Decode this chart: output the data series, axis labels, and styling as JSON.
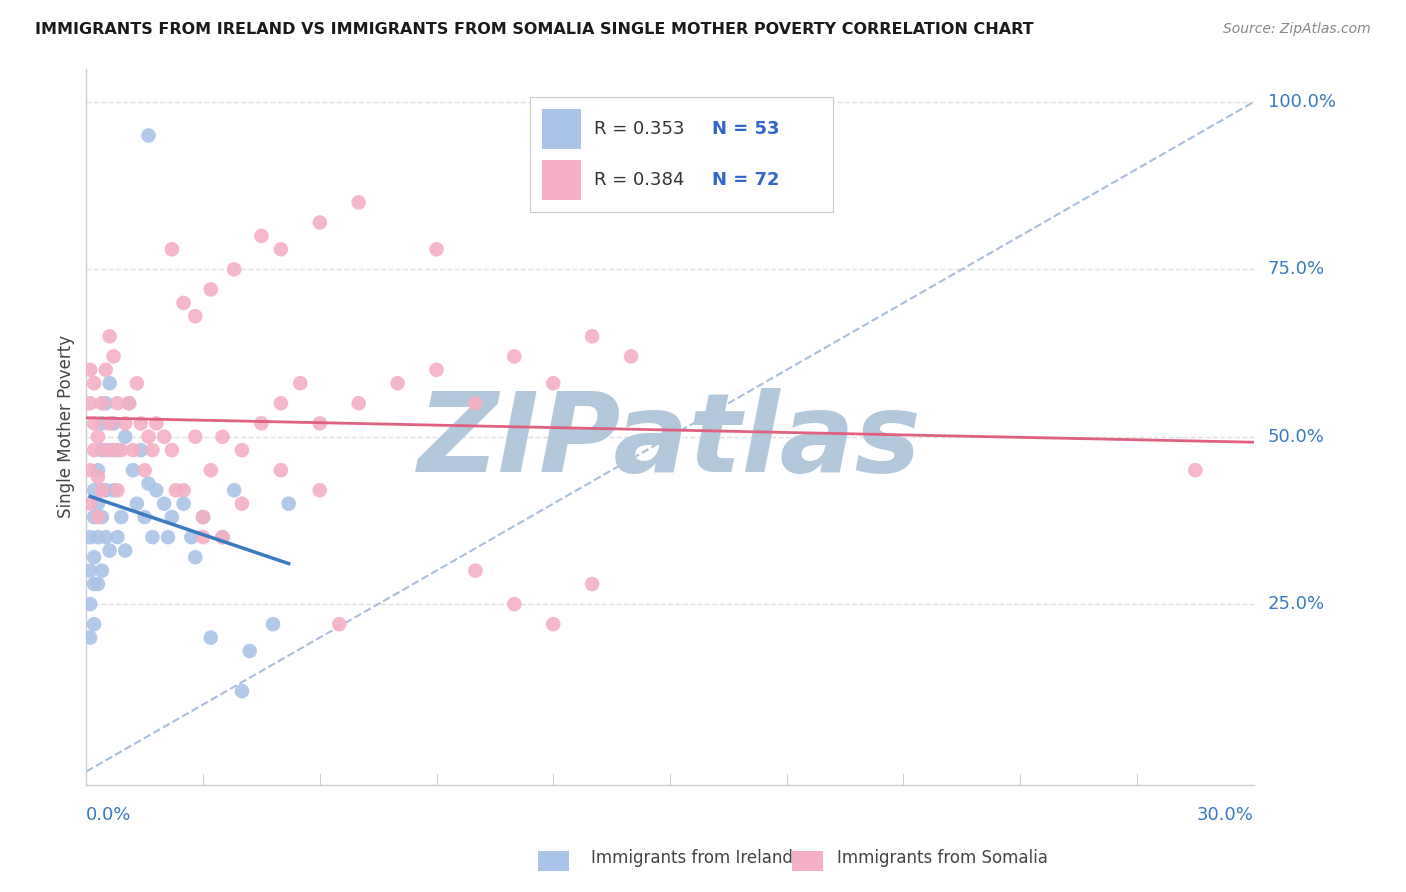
{
  "title": "IMMIGRANTS FROM IRELAND VS IMMIGRANTS FROM SOMALIA SINGLE MOTHER POVERTY CORRELATION CHART",
  "source": "Source: ZipAtlas.com",
  "ylabel": "Single Mother Poverty",
  "xlim": [
    0.0,
    0.3
  ],
  "ylim": [
    -0.02,
    1.05
  ],
  "ireland_color": "#aac4e8",
  "somalia_color": "#f5b0c5",
  "ireland_line_color": "#3a7abf",
  "somalia_line_color": "#e06080",
  "diag_line_color": "#a0b8d8",
  "ireland_R": 0.353,
  "ireland_N": 53,
  "somalia_R": 0.384,
  "somalia_N": 72,
  "legend_R_color": "#3366cc",
  "legend_N_color": "#3366cc",
  "watermark": "ZIPatlas",
  "watermark_color_r": 180,
  "watermark_color_g": 200,
  "watermark_color_b": 220,
  "background_color": "#ffffff",
  "grid_color": "#e0e0e0",
  "axis_label_color": "#3a7abf",
  "title_color": "#1a1a1a",
  "ylabel_color": "#444444",
  "ireland_x": [
    0.001,
    0.001,
    0.001,
    0.001,
    0.002,
    0.002,
    0.002,
    0.002,
    0.002,
    0.003,
    0.003,
    0.003,
    0.003,
    0.004,
    0.004,
    0.004,
    0.004,
    0.005,
    0.005,
    0.005,
    0.006,
    0.006,
    0.006,
    0.007,
    0.007,
    0.008,
    0.008,
    0.009,
    0.01,
    0.01,
    0.011,
    0.012,
    0.013,
    0.014,
    0.015,
    0.016,
    0.017,
    0.018,
    0.02,
    0.021,
    0.022,
    0.025,
    0.027,
    0.028,
    0.03,
    0.032,
    0.035,
    0.038,
    0.04,
    0.042,
    0.048,
    0.052,
    0.016
  ],
  "ireland_y": [
    0.3,
    0.25,
    0.2,
    0.35,
    0.28,
    0.32,
    0.38,
    0.42,
    0.22,
    0.35,
    0.4,
    0.45,
    0.28,
    0.48,
    0.52,
    0.38,
    0.3,
    0.55,
    0.42,
    0.35,
    0.58,
    0.48,
    0.33,
    0.52,
    0.42,
    0.48,
    0.35,
    0.38,
    0.5,
    0.33,
    0.55,
    0.45,
    0.4,
    0.48,
    0.38,
    0.43,
    0.35,
    0.42,
    0.4,
    0.35,
    0.38,
    0.4,
    0.35,
    0.32,
    0.38,
    0.2,
    0.35,
    0.42,
    0.12,
    0.18,
    0.22,
    0.4,
    0.95
  ],
  "somalia_x": [
    0.001,
    0.001,
    0.001,
    0.001,
    0.002,
    0.002,
    0.002,
    0.003,
    0.003,
    0.003,
    0.004,
    0.004,
    0.005,
    0.005,
    0.006,
    0.006,
    0.007,
    0.007,
    0.008,
    0.008,
    0.009,
    0.01,
    0.011,
    0.012,
    0.013,
    0.014,
    0.015,
    0.016,
    0.017,
    0.018,
    0.02,
    0.022,
    0.025,
    0.028,
    0.03,
    0.032,
    0.035,
    0.04,
    0.045,
    0.05,
    0.055,
    0.06,
    0.07,
    0.08,
    0.09,
    0.1,
    0.11,
    0.12,
    0.13,
    0.14,
    0.022,
    0.025,
    0.028,
    0.032,
    0.038,
    0.045,
    0.05,
    0.06,
    0.07,
    0.09,
    0.1,
    0.11,
    0.12,
    0.13,
    0.023,
    0.03,
    0.035,
    0.04,
    0.05,
    0.06,
    0.285,
    0.065
  ],
  "somalia_y": [
    0.45,
    0.55,
    0.6,
    0.4,
    0.48,
    0.52,
    0.58,
    0.5,
    0.44,
    0.38,
    0.55,
    0.42,
    0.6,
    0.48,
    0.65,
    0.52,
    0.62,
    0.48,
    0.55,
    0.42,
    0.48,
    0.52,
    0.55,
    0.48,
    0.58,
    0.52,
    0.45,
    0.5,
    0.48,
    0.52,
    0.5,
    0.48,
    0.42,
    0.5,
    0.35,
    0.45,
    0.5,
    0.48,
    0.52,
    0.55,
    0.58,
    0.52,
    0.55,
    0.58,
    0.6,
    0.55,
    0.62,
    0.58,
    0.65,
    0.62,
    0.78,
    0.7,
    0.68,
    0.72,
    0.75,
    0.8,
    0.78,
    0.82,
    0.85,
    0.78,
    0.3,
    0.25,
    0.22,
    0.28,
    0.42,
    0.38,
    0.35,
    0.4,
    0.45,
    0.42,
    0.45,
    0.22
  ]
}
